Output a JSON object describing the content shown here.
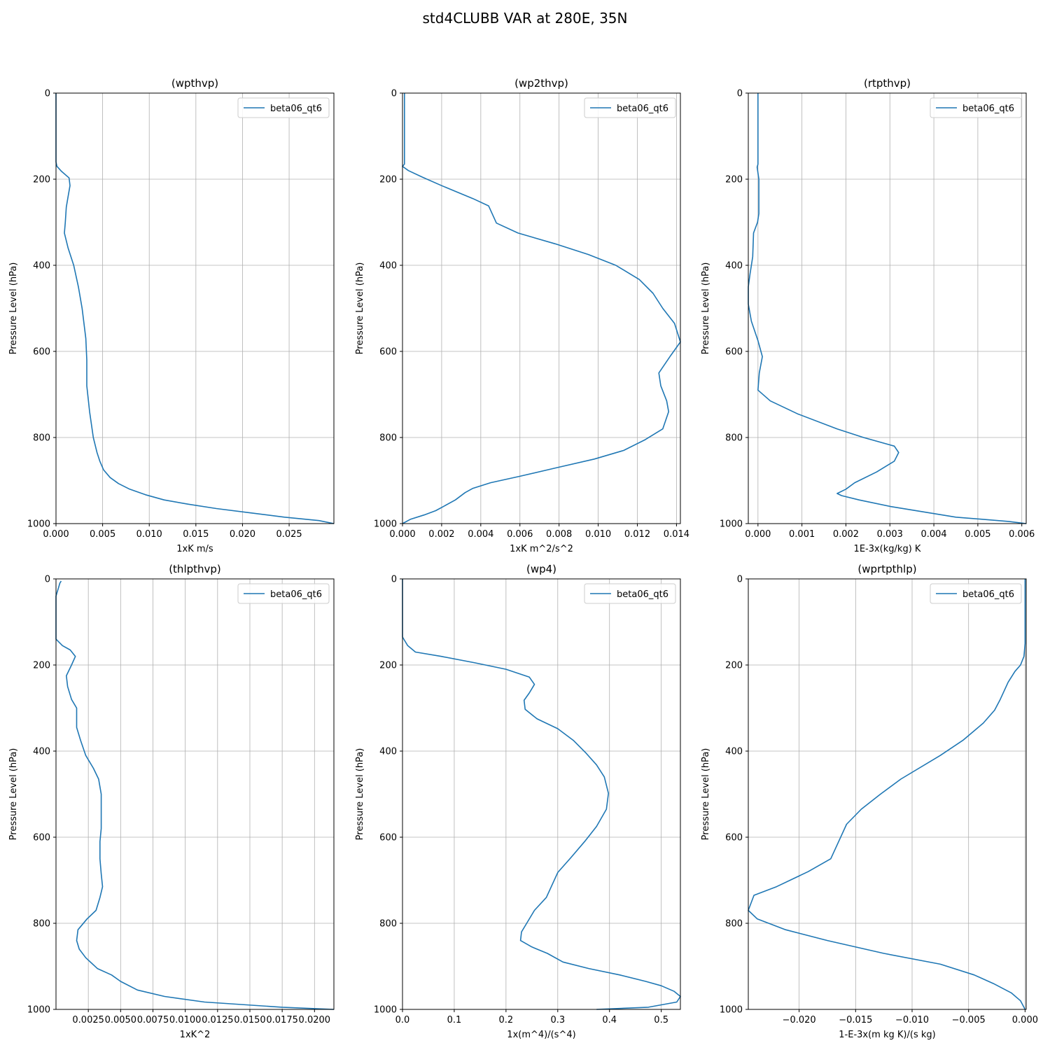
{
  "figure": {
    "suptitle": "std4CLUBB VAR at 280E, 35N"
  },
  "style": {
    "line_color": "#1f77b4",
    "grid_color": "#b0b0b0",
    "axes_color": "#000000"
  },
  "chart_data": [
    {
      "type": "line",
      "title": "(wpthvp)",
      "xlabel": "1xK m/s",
      "ylabel": "Pressure Level (hPa)",
      "xlim": [
        0,
        0.0298
      ],
      "ylim": [
        1000,
        0
      ],
      "y_inverted": true,
      "xticks": [
        0,
        0.005,
        0.01,
        0.015,
        0.02,
        0.025
      ],
      "xtick_labels": [
        "0.000",
        "0.005",
        "0.010",
        "0.015",
        "0.020",
        "0.025"
      ],
      "yticks": [
        0,
        200,
        400,
        600,
        800,
        1000
      ],
      "ytick_labels": [
        "0",
        "200",
        "400",
        "600",
        "800",
        "1000"
      ],
      "grid": true,
      "legend": {
        "position": "upper right",
        "entries": [
          "beta06_qt6"
        ]
      },
      "series": [
        {
          "name": "beta06_qt6",
          "x": [
            0,
            0,
            0,
            0,
            0.0001,
            0.0006,
            0.0014,
            0.0015,
            0.0013,
            0.0011,
            0.001,
            0.0009,
            0.0013,
            0.0019,
            0.0024,
            0.0028,
            0.0032,
            0.0033,
            0.0033,
            0.0036,
            0.004,
            0.0044,
            0.0047,
            0.0051,
            0.0058,
            0.0067,
            0.0079,
            0.0096,
            0.0116,
            0.0142,
            0.0172,
            0.0208,
            0.0245,
            0.0282,
            0.0298
          ],
          "y": [
            0,
            60,
            120,
            160,
            170,
            182,
            197,
            215,
            240,
            265,
            300,
            325,
            360,
            400,
            450,
            500,
            570,
            620,
            680,
            740,
            800,
            835,
            855,
            875,
            893,
            907,
            920,
            933,
            945,
            955,
            965,
            975,
            985,
            993,
            1000
          ]
        }
      ]
    },
    {
      "type": "line",
      "title": "(wp2thvp)",
      "xlabel": "1xK m^2/s^2",
      "ylabel": "Pressure Level (hPa)",
      "xlim": [
        0,
        0.0142
      ],
      "ylim": [
        1000,
        0
      ],
      "y_inverted": true,
      "xticks": [
        0,
        0.002,
        0.004,
        0.006,
        0.008,
        0.01,
        0.012,
        0.014
      ],
      "xtick_labels": [
        "0.000",
        "0.002",
        "0.004",
        "0.006",
        "0.008",
        "0.010",
        "0.012",
        "0.014"
      ],
      "yticks": [
        0,
        200,
        400,
        600,
        800,
        1000
      ],
      "ytick_labels": [
        "0",
        "200",
        "400",
        "600",
        "800",
        "1000"
      ],
      "grid": true,
      "legend": {
        "position": "upper right",
        "entries": [
          "beta06_qt6"
        ]
      },
      "series": [
        {
          "name": "beta06_qt6",
          "x": [
            0.0001,
            0.0001,
            0.0001,
            0.0001,
            0,
            0.0003,
            0.001,
            0.002,
            0.0028,
            0.0036,
            0.0044,
            0.0048,
            0.0059,
            0.0078,
            0.0095,
            0.0109,
            0.0121,
            0.0128,
            0.0133,
            0.0139,
            0.0142,
            0.0137,
            0.0131,
            0.0132,
            0.0135,
            0.0136,
            0.0133,
            0.0124,
            0.0113,
            0.0098,
            0.0079,
            0.006,
            0.0045,
            0.0036,
            0.0032,
            0.0027,
            0.0021,
            0.0017,
            0.0011,
            0.0004,
            0
          ],
          "y": [
            0,
            100,
            150,
            165,
            170,
            180,
            195,
            215,
            230,
            245,
            262,
            302,
            325,
            350,
            375,
            400,
            433,
            465,
            500,
            535,
            578,
            610,
            650,
            680,
            715,
            740,
            780,
            805,
            830,
            850,
            870,
            890,
            905,
            918,
            928,
            945,
            960,
            970,
            980,
            990,
            1000
          ]
        }
      ]
    },
    {
      "type": "line",
      "title": "(rtpthvp)",
      "xlabel": "1E-3x(kg/kg) K",
      "ylabel": "Pressure Level (hPa)",
      "xlim": [
        -0.00022,
        0.0061
      ],
      "ylim": [
        1000,
        0
      ],
      "y_inverted": true,
      "xticks": [
        0,
        0.001,
        0.002,
        0.003,
        0.004,
        0.005,
        0.006
      ],
      "xtick_labels": [
        "0.000",
        "0.001",
        "0.002",
        "0.003",
        "0.004",
        "0.005",
        "0.006"
      ],
      "yticks": [
        0,
        200,
        400,
        600,
        800,
        1000
      ],
      "ytick_labels": [
        "0",
        "200",
        "400",
        "600",
        "800",
        "1000"
      ],
      "grid": true,
      "legend": {
        "position": "upper right",
        "entries": [
          "beta06_qt6"
        ]
      },
      "series": [
        {
          "name": "beta06_qt6",
          "x": [
            0,
            0,
            0,
            0,
            -2e-05,
            2e-05,
            2e-05,
            -1e-05,
            -0.0001,
            -0.00012,
            -0.00018,
            -0.00022,
            -0.00022,
            -0.00015,
            0,
            0.0001,
            3e-05,
            0,
            0.00028,
            0.0009,
            0.0018,
            0.0024,
            0.0031,
            0.0032,
            0.0031,
            0.0027,
            0.0022,
            0.002,
            0.0018,
            0.0019,
            0.0023,
            0.003,
            0.0045,
            0.0057,
            0.0061
          ],
          "y": [
            0,
            100,
            150,
            165,
            172,
            200,
            280,
            300,
            325,
            380,
            420,
            450,
            490,
            530,
            575,
            612,
            650,
            690,
            715,
            745,
            780,
            800,
            820,
            835,
            855,
            880,
            905,
            920,
            930,
            935,
            945,
            960,
            985,
            995,
            1000
          ]
        }
      ]
    },
    {
      "type": "line",
      "title": "(thlpthvp)",
      "xlabel": "1xK^2",
      "ylabel": "Pressure Level (hPa)",
      "xlim": [
        0.0,
        0.0215
      ],
      "ylim": [
        1000,
        0
      ],
      "y_inverted": true,
      "xticks": [
        0.0025,
        0.005,
        0.0075,
        0.01,
        0.0125,
        0.015,
        0.0175,
        0.02
      ],
      "xtick_labels": [
        "0.0025",
        "0.0050",
        "0.0075",
        "0.0100",
        "0.0125",
        "0.0150",
        "0.0175",
        "0.0200"
      ],
      "yticks": [
        0,
        200,
        400,
        600,
        800,
        1000
      ],
      "ytick_labels": [
        "0",
        "200",
        "400",
        "600",
        "800",
        "1000"
      ],
      "grid": true,
      "legend": {
        "position": "upper right",
        "entries": [
          "beta06_qt6"
        ]
      },
      "series": [
        {
          "name": "beta06_qt6",
          "x": [
            0.0004,
            0.0003,
            0.0002,
            0.0001,
            0,
            0,
            0.0005,
            0.0011,
            0.0015,
            0.0012,
            0.0008,
            0.0009,
            0.0012,
            0.0016,
            0.0016,
            0.0019,
            0.0023,
            0.0029,
            0.0033,
            0.0035,
            0.0035,
            0.0035,
            0.0034,
            0.0034,
            0.0035,
            0.0036,
            0.0034,
            0.0031,
            0.0024,
            0.0017,
            0.0016,
            0.0018,
            0.0023,
            0.0032,
            0.0043,
            0.005,
            0.0063,
            0.0084,
            0.0115,
            0.0175,
            0.0215
          ],
          "y": [
            5,
            10,
            20,
            30,
            40,
            140,
            155,
            165,
            180,
            200,
            225,
            250,
            280,
            300,
            345,
            375,
            410,
            440,
            465,
            500,
            540,
            580,
            610,
            650,
            685,
            715,
            740,
            770,
            790,
            815,
            840,
            860,
            880,
            905,
            920,
            935,
            955,
            970,
            983,
            995,
            1000
          ]
        }
      ]
    },
    {
      "type": "line",
      "title": "(wp4)",
      "xlabel": "1x(m^4)/(s^4)",
      "ylabel": "Pressure Level (hPa)",
      "xlim": [
        0,
        0.537
      ],
      "ylim": [
        1000,
        0
      ],
      "y_inverted": true,
      "xticks": [
        0,
        0.1,
        0.2,
        0.3,
        0.4,
        0.5
      ],
      "xtick_labels": [
        "0.0",
        "0.1",
        "0.2",
        "0.3",
        "0.4",
        "0.5"
      ],
      "yticks": [
        0,
        200,
        400,
        600,
        800,
        1000
      ],
      "ytick_labels": [
        "0",
        "200",
        "400",
        "600",
        "800",
        "1000"
      ],
      "grid": true,
      "legend": {
        "position": "upper right",
        "entries": [
          "beta06_qt6"
        ]
      },
      "series": [
        {
          "name": "beta06_qt6",
          "x": [
            0,
            0,
            0.01,
            0.025,
            0.075,
            0.14,
            0.2,
            0.245,
            0.255,
            0.245,
            0.235,
            0.237,
            0.26,
            0.3,
            0.33,
            0.355,
            0.375,
            0.39,
            0.398,
            0.394,
            0.375,
            0.352,
            0.325,
            0.3,
            0.278,
            0.255,
            0.24,
            0.23,
            0.228,
            0.25,
            0.28,
            0.31,
            0.36,
            0.42,
            0.47,
            0.5,
            0.525,
            0.537,
            0.53,
            0.475,
            0.375
          ],
          "y": [
            0,
            135,
            155,
            170,
            180,
            195,
            210,
            228,
            245,
            265,
            282,
            303,
            325,
            348,
            375,
            405,
            432,
            460,
            498,
            535,
            575,
            610,
            648,
            682,
            740,
            770,
            800,
            820,
            840,
            855,
            870,
            890,
            905,
            920,
            935,
            945,
            958,
            970,
            983,
            995,
            1000
          ]
        }
      ]
    },
    {
      "type": "line",
      "title": "(wprtpthlp)",
      "xlabel": "1-E-3x(m kg K)/(s kg)",
      "ylabel": "Pressure Level (hPa)",
      "xlim": [
        -0.0245,
        0.0001
      ],
      "ylim": [
        1000,
        0
      ],
      "y_inverted": true,
      "xticks": [
        -0.02,
        -0.015,
        -0.01,
        -0.005,
        0
      ],
      "xtick_labels": [
        "−0.020",
        "−0.015",
        "−0.010",
        "−0.005",
        "0.000"
      ],
      "yticks": [
        0,
        200,
        400,
        600,
        800,
        1000
      ],
      "ytick_labels": [
        "0",
        "200",
        "400",
        "600",
        "800",
        "1000"
      ],
      "grid": true,
      "legend": {
        "position": "upper right",
        "entries": [
          "beta06_qt6"
        ]
      },
      "series": [
        {
          "name": "beta06_qt6",
          "x": [
            0,
            0,
            -0.0001,
            -0.0004,
            -0.0009,
            -0.0015,
            -0.0022,
            -0.0027,
            -0.0037,
            -0.0055,
            -0.0075,
            -0.011,
            -0.0128,
            -0.0145,
            -0.0158,
            -0.0165,
            -0.0172,
            -0.0192,
            -0.022,
            -0.024,
            -0.0245,
            -0.0237,
            -0.0212,
            -0.0175,
            -0.0125,
            -0.0075,
            -0.0045,
            -0.0028,
            -0.0012,
            -0.0004,
            0
          ],
          "y": [
            0,
            150,
            180,
            200,
            215,
            240,
            280,
            305,
            335,
            375,
            410,
            465,
            500,
            535,
            570,
            610,
            650,
            680,
            715,
            735,
            770,
            790,
            815,
            840,
            870,
            895,
            920,
            940,
            962,
            980,
            1000
          ]
        }
      ]
    }
  ]
}
